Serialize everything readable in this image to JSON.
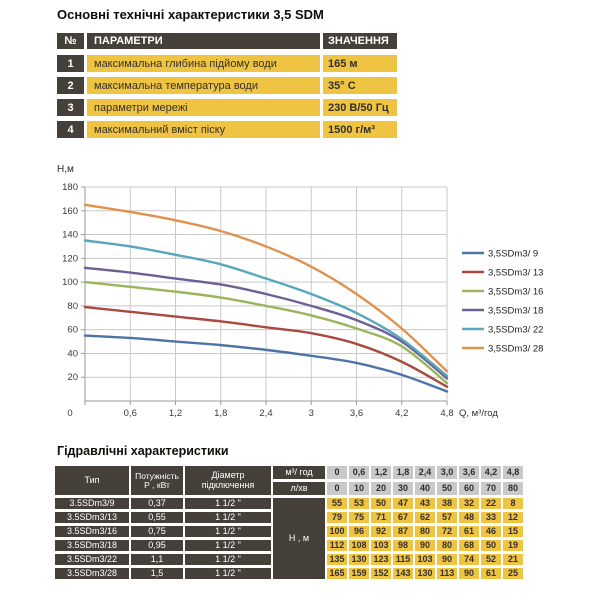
{
  "specs_table": {
    "title": "Основні технічні характеристики 3,5 SDM",
    "columns": {
      "num": "№",
      "param": "ПАРАМЕТРИ",
      "value": "ЗНАЧЕННЯ"
    },
    "rows": [
      {
        "num": "1",
        "param": "максимальна глибина підйому води",
        "value": "165 м"
      },
      {
        "num": "2",
        "param": "максимальна температура води",
        "value": "35° С"
      },
      {
        "num": "3",
        "param": "параметри мережі",
        "value": "230 В/50 Гц"
      },
      {
        "num": "4",
        "param": "максимальний вміст піску",
        "value": "1500 г/м³"
      }
    ],
    "colors": {
      "header_bg": "#454039",
      "row_bg": "#efc442"
    }
  },
  "chart_data": {
    "type": "line",
    "ylabel": "Н,м",
    "xlabel": "Q,  м³/год",
    "x": [
      0,
      0.6,
      1.2,
      1.8,
      2.4,
      3.0,
      3.6,
      4.2,
      4.8
    ],
    "xtick_labels": [
      "0",
      "0,6",
      "1,2",
      "1,8",
      "2,4",
      "3",
      "3,6",
      "4,2",
      "4,8"
    ],
    "yticks": [
      20,
      40,
      60,
      80,
      100,
      120,
      140,
      160,
      180
    ],
    "ylim": [
      0,
      180
    ],
    "xlim": [
      0,
      4.8
    ],
    "grid": true,
    "legend_position": "right",
    "series": [
      {
        "name": "3,5SDm3/ 9",
        "color": "#4e74a4",
        "values": [
          55,
          53,
          50,
          47,
          43,
          38,
          32,
          22,
          8
        ]
      },
      {
        "name": "3,5SDm3/ 13",
        "color": "#a9493f",
        "values": [
          79,
          75,
          71,
          67,
          62,
          57,
          48,
          33,
          12
        ]
      },
      {
        "name": "3,5SDm3/ 16",
        "color": "#9ab65a",
        "values": [
          100,
          96,
          92,
          87,
          80,
          72,
          61,
          46,
          15
        ]
      },
      {
        "name": "3,5SDm3/ 18",
        "color": "#6e5f95",
        "values": [
          112,
          108,
          103,
          98,
          90,
          80,
          68,
          50,
          19
        ]
      },
      {
        "name": "3,5SDm3/ 22",
        "color": "#58a7bd",
        "values": [
          135,
          130,
          123,
          115,
          103,
          90,
          74,
          52,
          21
        ]
      },
      {
        "name": "3,5SDm3/ 28",
        "color": "#e0914c",
        "values": [
          165,
          159,
          152,
          143,
          130,
          113,
          90,
          61,
          25
        ]
      }
    ]
  },
  "hydraulics_table": {
    "title": "Гідравлічні характеристики",
    "columns": {
      "type": "Тип",
      "power_line1": "Потужність",
      "power_line2": "Р , кВт",
      "diameter_line1": "Діаметр",
      "diameter_line2": "підключення",
      "flow_m3": "м³/ год",
      "flow_l": "л/хв",
      "head": "Н , м"
    },
    "flow_m3_values": [
      "0",
      "0,6",
      "1,2",
      "1,8",
      "2,4",
      "3,0",
      "3,6",
      "4,2",
      "4,8"
    ],
    "flow_l_values": [
      "0",
      "10",
      "20",
      "30",
      "40",
      "50",
      "60",
      "70",
      "80"
    ],
    "rows": [
      {
        "type": "3.5SDm3/9",
        "power": "0,37",
        "diameter": "1 1/2 \"",
        "head_m": [
          "55",
          "53",
          "50",
          "47",
          "43",
          "38",
          "32",
          "22",
          "8"
        ]
      },
      {
        "type": "3.5SDm3/13",
        "power": "0,55",
        "diameter": "1 1/2 \"",
        "head_m": [
          "79",
          "75",
          "71",
          "67",
          "62",
          "57",
          "48",
          "33",
          "12"
        ]
      },
      {
        "type": "3.5SDm3/16",
        "power": "0,75",
        "diameter": "1 1/2 \"",
        "head_m": [
          "100",
          "96",
          "92",
          "87",
          "80",
          "72",
          "61",
          "46",
          "15"
        ]
      },
      {
        "type": "3.5SDm3/18",
        "power": "0,95",
        "diameter": "1 1/2 \"",
        "head_m": [
          "112",
          "108",
          "103",
          "98",
          "90",
          "80",
          "68",
          "50",
          "19"
        ]
      },
      {
        "type": "3.5SDm3/22",
        "power": "1,1",
        "diameter": "1 1/2 \"",
        "head_m": [
          "135",
          "130",
          "123",
          "115",
          "103",
          "90",
          "74",
          "52",
          "21"
        ]
      },
      {
        "type": "3.5SDm3/28",
        "power": "1,5",
        "diameter": "1 1/2 \"",
        "head_m": [
          "165",
          "159",
          "152",
          "143",
          "130",
          "113",
          "90",
          "61",
          "25"
        ]
      }
    ]
  }
}
